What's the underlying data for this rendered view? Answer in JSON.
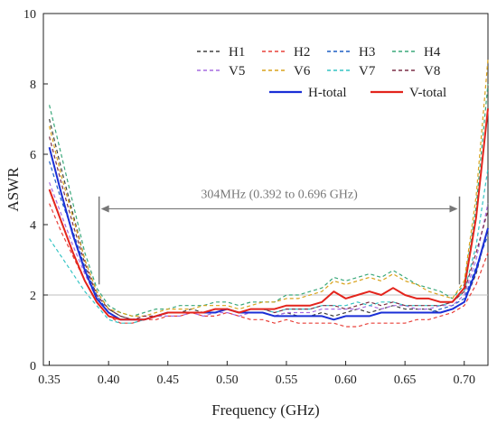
{
  "chart_data": {
    "type": "line",
    "title": "",
    "xlabel": "Frequency (GHz)",
    "ylabel": "ASWR",
    "xlim": [
      0.345,
      0.72
    ],
    "ylim": [
      0,
      10
    ],
    "xticks": [
      0.35,
      0.4,
      0.45,
      0.5,
      0.55,
      0.6,
      0.65,
      0.7
    ],
    "xtick_labels": [
      "0.35",
      "0.40",
      "0.45",
      "0.50",
      "0.55",
      "0.60",
      "0.65",
      "0.70"
    ],
    "yticks": [
      0,
      2,
      4,
      6,
      8,
      10
    ],
    "ytick_labels": [
      "0",
      "2",
      "4",
      "6",
      "8",
      "10"
    ],
    "grid": false,
    "legend_position": "top-right",
    "reference_line": {
      "y": 2,
      "color": "#bfbfbf"
    },
    "annotation": {
      "text": "304MHz (0.392 to 0.696 GHz)",
      "x_start": 0.392,
      "x_end": 0.696,
      "y_arrow": 4.45,
      "marker_y_low": 2.3,
      "marker_y_high": 4.8
    },
    "x": [
      0.35,
      0.36,
      0.37,
      0.38,
      0.39,
      0.4,
      0.41,
      0.42,
      0.43,
      0.44,
      0.45,
      0.46,
      0.47,
      0.48,
      0.49,
      0.5,
      0.51,
      0.52,
      0.53,
      0.54,
      0.55,
      0.56,
      0.57,
      0.58,
      0.59,
      0.6,
      0.61,
      0.62,
      0.63,
      0.64,
      0.65,
      0.66,
      0.67,
      0.68,
      0.69,
      0.7,
      0.71,
      0.72
    ],
    "series": [
      {
        "name": "H1",
        "color": "#404040",
        "dash": "4,3",
        "width": 1.2,
        "values": [
          7.0,
          5.6,
          4.3,
          3.0,
          2.1,
          1.6,
          1.4,
          1.3,
          1.3,
          1.4,
          1.5,
          1.5,
          1.6,
          1.5,
          1.5,
          1.6,
          1.5,
          1.5,
          1.5,
          1.4,
          1.5,
          1.4,
          1.4,
          1.5,
          1.4,
          1.5,
          1.6,
          1.5,
          1.6,
          1.7,
          1.6,
          1.6,
          1.6,
          1.5,
          1.6,
          1.8,
          2.6,
          3.9
        ]
      },
      {
        "name": "H2",
        "color": "#e8403a",
        "dash": "4,3",
        "width": 1.2,
        "values": [
          4.6,
          3.8,
          3.1,
          2.4,
          1.8,
          1.4,
          1.2,
          1.2,
          1.3,
          1.3,
          1.4,
          1.4,
          1.5,
          1.4,
          1.4,
          1.5,
          1.4,
          1.3,
          1.3,
          1.2,
          1.3,
          1.2,
          1.2,
          1.2,
          1.2,
          1.1,
          1.1,
          1.2,
          1.2,
          1.2,
          1.2,
          1.3,
          1.3,
          1.4,
          1.5,
          1.7,
          2.3,
          3.2
        ]
      },
      {
        "name": "H3",
        "color": "#1f5fc4",
        "dash": "4,3",
        "width": 1.2,
        "values": [
          5.8,
          4.7,
          3.8,
          2.8,
          2.0,
          1.5,
          1.3,
          1.3,
          1.3,
          1.4,
          1.5,
          1.5,
          1.5,
          1.5,
          1.6,
          1.6,
          1.5,
          1.5,
          1.5,
          1.4,
          1.4,
          1.4,
          1.4,
          1.4,
          1.3,
          1.4,
          1.4,
          1.4,
          1.5,
          1.5,
          1.5,
          1.5,
          1.5,
          1.6,
          1.7,
          1.9,
          2.8,
          3.7
        ]
      },
      {
        "name": "H4",
        "color": "#3aa87a",
        "dash": "4,3",
        "width": 1.2,
        "values": [
          7.4,
          6.0,
          4.6,
          3.2,
          2.2,
          1.7,
          1.5,
          1.4,
          1.5,
          1.6,
          1.6,
          1.7,
          1.7,
          1.7,
          1.8,
          1.8,
          1.7,
          1.8,
          1.8,
          1.8,
          2.0,
          2.0,
          2.1,
          2.2,
          2.5,
          2.4,
          2.5,
          2.6,
          2.5,
          2.7,
          2.5,
          2.3,
          2.2,
          2.1,
          1.9,
          2.3,
          4.5,
          8.0
        ]
      },
      {
        "name": "V5",
        "color": "#a66be0",
        "dash": "4,3",
        "width": 1.2,
        "values": [
          5.2,
          4.3,
          3.4,
          2.6,
          1.9,
          1.5,
          1.3,
          1.3,
          1.3,
          1.4,
          1.4,
          1.4,
          1.5,
          1.4,
          1.5,
          1.5,
          1.4,
          1.5,
          1.5,
          1.4,
          1.5,
          1.5,
          1.5,
          1.6,
          1.6,
          1.6,
          1.6,
          1.7,
          1.6,
          1.7,
          1.7,
          1.6,
          1.6,
          1.7,
          1.7,
          2.0,
          3.0,
          4.6
        ]
      },
      {
        "name": "V6",
        "color": "#d9a21b",
        "dash": "4,3",
        "width": 1.2,
        "values": [
          6.8,
          5.4,
          4.2,
          3.0,
          2.1,
          1.6,
          1.5,
          1.4,
          1.4,
          1.5,
          1.6,
          1.6,
          1.6,
          1.7,
          1.7,
          1.7,
          1.6,
          1.7,
          1.8,
          1.8,
          1.9,
          1.9,
          2.0,
          2.1,
          2.4,
          2.3,
          2.4,
          2.5,
          2.4,
          2.6,
          2.4,
          2.3,
          2.1,
          2.0,
          1.9,
          2.4,
          4.8,
          8.7
        ]
      },
      {
        "name": "V7",
        "color": "#33c4c4",
        "dash": "4,3",
        "width": 1.2,
        "values": [
          3.6,
          3.1,
          2.6,
          2.1,
          1.7,
          1.3,
          1.2,
          1.2,
          1.3,
          1.4,
          1.5,
          1.5,
          1.5,
          1.5,
          1.6,
          1.6,
          1.5,
          1.6,
          1.6,
          1.5,
          1.6,
          1.6,
          1.6,
          1.7,
          1.7,
          1.7,
          1.8,
          1.7,
          1.8,
          1.8,
          1.7,
          1.7,
          1.7,
          1.7,
          1.8,
          2.1,
          3.4,
          5.6
        ]
      },
      {
        "name": "V8",
        "color": "#7b2e46",
        "dash": "4,3",
        "width": 1.2,
        "values": [
          6.5,
          5.2,
          4.0,
          2.9,
          2.0,
          1.6,
          1.4,
          1.3,
          1.4,
          1.4,
          1.5,
          1.5,
          1.5,
          1.5,
          1.6,
          1.6,
          1.5,
          1.6,
          1.6,
          1.5,
          1.6,
          1.6,
          1.6,
          1.7,
          1.7,
          1.6,
          1.7,
          1.8,
          1.7,
          1.8,
          1.7,
          1.7,
          1.7,
          1.7,
          1.8,
          2.1,
          3.2,
          4.4
        ]
      },
      {
        "name": "H-total",
        "color": "#1a2fd6",
        "dash": "",
        "width": 2.0,
        "values": [
          6.2,
          4.9,
          3.7,
          2.7,
          1.9,
          1.5,
          1.3,
          1.3,
          1.3,
          1.4,
          1.5,
          1.5,
          1.5,
          1.5,
          1.5,
          1.6,
          1.5,
          1.5,
          1.5,
          1.4,
          1.4,
          1.4,
          1.4,
          1.4,
          1.3,
          1.4,
          1.4,
          1.4,
          1.5,
          1.5,
          1.5,
          1.5,
          1.5,
          1.5,
          1.6,
          1.8,
          2.7,
          3.9
        ]
      },
      {
        "name": "V-total",
        "color": "#e3241c",
        "dash": "",
        "width": 2.0,
        "values": [
          5.0,
          4.1,
          3.2,
          2.4,
          1.8,
          1.4,
          1.3,
          1.3,
          1.3,
          1.4,
          1.5,
          1.5,
          1.5,
          1.5,
          1.6,
          1.6,
          1.5,
          1.6,
          1.6,
          1.6,
          1.7,
          1.7,
          1.7,
          1.8,
          2.1,
          1.9,
          2.0,
          2.1,
          2.0,
          2.2,
          2.0,
          1.9,
          1.9,
          1.8,
          1.8,
          2.2,
          4.2,
          7.3
        ]
      }
    ]
  }
}
